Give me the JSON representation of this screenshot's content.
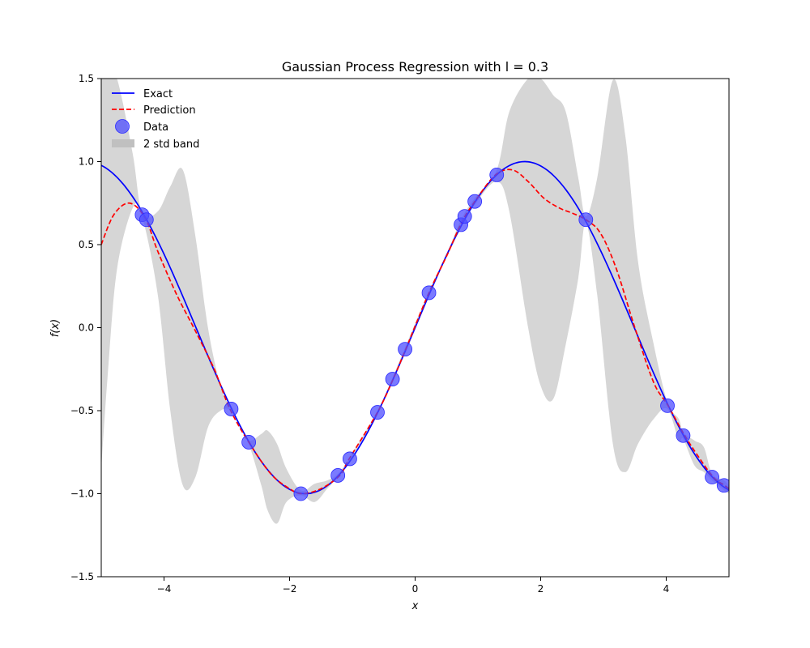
{
  "chart_data": {
    "type": "line",
    "title": "Gaussian Process Regression with l = 0.3",
    "xlabel": "x",
    "ylabel": "f(x)",
    "xlim": [
      -5,
      5
    ],
    "ylim": [
      -1.5,
      1.5
    ],
    "x_ticks": [
      -4,
      -2,
      0,
      2,
      4
    ],
    "x_tick_labels": [
      "−4",
      "−2",
      "0",
      "2",
      "4"
    ],
    "y_ticks": [
      -1.5,
      -1.0,
      -0.5,
      0.0,
      0.5,
      1.0,
      1.5
    ],
    "y_tick_labels": [
      "−1.5",
      "−1.0",
      "−0.5",
      "0.0",
      "0.5",
      "1.0",
      "1.5"
    ],
    "grid": false,
    "legend": {
      "location": "upper-left",
      "entries": [
        {
          "label": "Exact",
          "type": "line",
          "color": "#0000ff",
          "style": "solid"
        },
        {
          "label": "Prediction",
          "type": "line",
          "color": "#ff0000",
          "style": "dashed"
        },
        {
          "label": "Data",
          "type": "marker",
          "color": "#4d4dff"
        },
        {
          "label": "2 std band",
          "type": "patch",
          "color": "#c0c0c0"
        }
      ]
    },
    "series": [
      {
        "name": "Exact",
        "color": "#0000ff",
        "style": "solid",
        "function": "sin(0.9*x)",
        "x": [
          -5,
          -4.5,
          -4,
          -3.5,
          -3,
          -2.5,
          -2,
          -1.75,
          -1.5,
          -1,
          -0.5,
          0,
          0.5,
          1,
          1.5,
          1.75,
          2,
          2.5,
          3,
          3.5,
          4,
          4.5,
          5
        ],
        "y": [
          0.98,
          0.79,
          0.44,
          0.0,
          -0.43,
          -0.78,
          -0.97,
          -1.0,
          -0.98,
          -0.78,
          -0.43,
          0.0,
          0.43,
          0.78,
          0.98,
          1.0,
          0.97,
          0.78,
          0.43,
          0.0,
          -0.44,
          -0.79,
          -0.98
        ]
      },
      {
        "name": "Prediction",
        "color": "#ff0000",
        "style": "dashed",
        "x": [
          -5,
          -4.8,
          -4.55,
          -4.3,
          -4.1,
          -3.8,
          -3.5,
          -3.2,
          -2.95,
          -2.65,
          -2.3,
          -2.0,
          -1.8,
          -1.5,
          -1.2,
          -1.05,
          -0.6,
          -0.35,
          -0.15,
          0.22,
          0.5,
          0.75,
          0.97,
          1.28,
          1.55,
          1.8,
          2.05,
          2.3,
          2.5,
          2.72,
          2.95,
          3.2,
          3.5,
          3.8,
          4.03,
          4.28,
          4.5,
          4.75,
          4.93,
          5
        ],
        "y": [
          0.5,
          0.68,
          0.75,
          0.66,
          0.46,
          0.2,
          -0.02,
          -0.25,
          -0.49,
          -0.69,
          -0.88,
          -0.97,
          -1.0,
          -0.97,
          -0.89,
          -0.79,
          -0.51,
          -0.31,
          -0.13,
          0.21,
          0.43,
          0.64,
          0.77,
          0.92,
          0.95,
          0.88,
          0.78,
          0.72,
          0.69,
          0.65,
          0.57,
          0.36,
          0.0,
          -0.33,
          -0.47,
          -0.64,
          -0.77,
          -0.9,
          -0.95,
          -0.97
        ]
      }
    ],
    "data_points": {
      "name": "Data",
      "color": "#4d4dff",
      "x": [
        -4.35,
        -4.28,
        -2.93,
        -2.65,
        -1.82,
        -1.23,
        -1.04,
        -0.6,
        -0.36,
        -0.16,
        0.22,
        0.73,
        0.79,
        0.95,
        1.3,
        2.72,
        4.02,
        4.27,
        4.73,
        4.92
      ],
      "y": [
        0.68,
        0.65,
        -0.49,
        -0.69,
        -1.0,
        -0.89,
        -0.79,
        -0.51,
        -0.31,
        -0.13,
        0.21,
        0.62,
        0.67,
        0.76,
        0.92,
        0.65,
        -0.47,
        -0.65,
        -0.9,
        -0.95
      ]
    },
    "band": {
      "name": "2 std band",
      "color": "#d6d6d6",
      "x": [
        -5,
        -4.9,
        -4.75,
        -4.5,
        -4.35,
        -4.1,
        -3.9,
        -3.7,
        -3.5,
        -3.3,
        -3.1,
        -2.93,
        -2.8,
        -2.65,
        -2.45,
        -2.35,
        -2.2,
        -2.05,
        -1.82,
        -1.6,
        -1.4,
        -1.23,
        -1.04,
        -0.6,
        -0.36,
        -0.16,
        0.22,
        0.5,
        0.73,
        0.95,
        1.3,
        1.5,
        1.8,
        2.0,
        2.2,
        2.4,
        2.6,
        2.72,
        2.9,
        3.15,
        3.35,
        3.55,
        3.8,
        4.02,
        4.2,
        4.27,
        4.45,
        4.6,
        4.73,
        4.92,
        5
      ],
      "upper": [
        1.5,
        1.5,
        1.5,
        1.05,
        0.69,
        0.7,
        0.85,
        0.95,
        0.55,
        0.0,
        -0.35,
        -0.49,
        -0.58,
        -0.68,
        -0.64,
        -0.62,
        -0.7,
        -0.85,
        -0.98,
        -0.94,
        -0.92,
        -0.88,
        -0.78,
        -0.5,
        -0.3,
        -0.12,
        0.22,
        0.44,
        0.65,
        0.78,
        0.95,
        1.3,
        1.5,
        1.5,
        1.4,
        1.3,
        0.9,
        0.67,
        0.9,
        1.49,
        1.15,
        0.4,
        -0.1,
        -0.45,
        -0.55,
        -0.63,
        -0.68,
        -0.72,
        -0.88,
        -0.92,
        -0.95
      ],
      "lower": [
        -0.85,
        -0.3,
        0.35,
        0.72,
        0.67,
        0.2,
        -0.5,
        -0.95,
        -0.9,
        -0.6,
        -0.5,
        -0.5,
        -0.6,
        -0.7,
        -0.95,
        -1.1,
        -1.18,
        -1.05,
        -1.01,
        -1.05,
        -0.97,
        -0.9,
        -0.8,
        -0.52,
        -0.32,
        -0.14,
        0.2,
        0.42,
        0.6,
        0.74,
        0.88,
        0.7,
        0.0,
        -0.35,
        -0.43,
        -0.1,
        0.3,
        0.63,
        0.2,
        -0.7,
        -0.87,
        -0.7,
        -0.55,
        -0.49,
        -0.68,
        -0.67,
        -0.83,
        -0.87,
        -0.92,
        -0.98,
        -1.0
      ]
    }
  }
}
